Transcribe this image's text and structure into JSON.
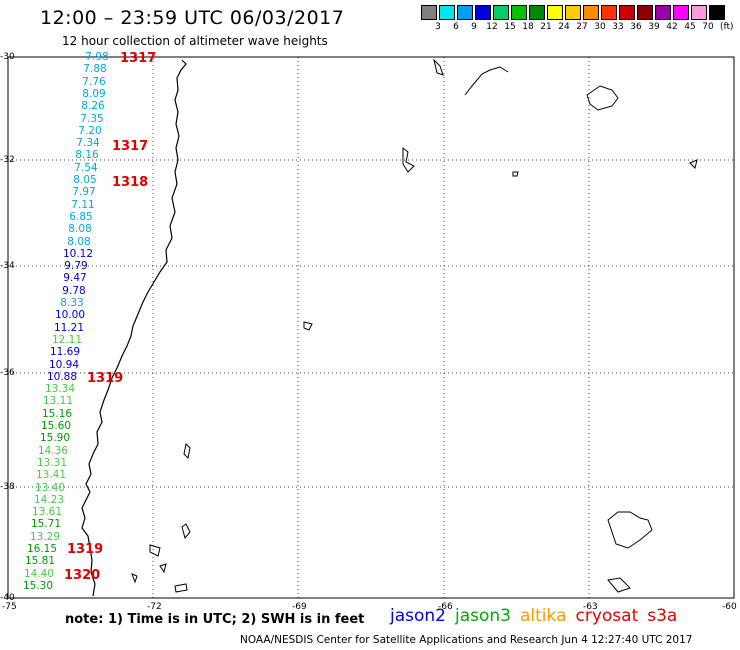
{
  "header": {
    "title": "12:00 – 23:59 UTC 06/03/2017",
    "subtitle": "12 hour collection of altimeter wave heights"
  },
  "legend": {
    "colors": [
      "#808080",
      "#00e5ee",
      "#00a0f0",
      "#0000dd",
      "#00cd66",
      "#00c000",
      "#008800",
      "#ffff00",
      "#ffcc00",
      "#ff8c00",
      "#ff3300",
      "#cc0000",
      "#8b0000",
      "#9900aa",
      "#ff00ff",
      "#ff99dd",
      "#000000"
    ],
    "levels": [
      "3",
      "6",
      "9",
      "12",
      "15",
      "18",
      "21",
      "24",
      "27",
      "30",
      "33",
      "36",
      "39",
      "42",
      "45",
      "70"
    ],
    "unit": "(ft)"
  },
  "axes": {
    "lat_labels": [
      "-30",
      "-32",
      "-34",
      "-36",
      "-38",
      "-40"
    ],
    "lon_labels": [
      "-75",
      "-72",
      "-69",
      "-66",
      "-63",
      "-60"
    ]
  },
  "wave_heights": [
    {
      "value": "7.98",
      "color": "#00a8d8"
    },
    {
      "value": "7.88",
      "color": "#00a8d8"
    },
    {
      "value": "7.76",
      "color": "#00a8d8"
    },
    {
      "value": "8.09",
      "color": "#00a8d8"
    },
    {
      "value": "8.26",
      "color": "#00a8d8"
    },
    {
      "value": "7.35",
      "color": "#00a8d8"
    },
    {
      "value": "7.20",
      "color": "#00a8d8"
    },
    {
      "value": "7.34",
      "color": "#00a8d8"
    },
    {
      "value": "8.16",
      "color": "#00a8d8"
    },
    {
      "value": "7.54",
      "color": "#00a8d8"
    },
    {
      "value": "8.05",
      "color": "#00a8d8"
    },
    {
      "value": "7.97",
      "color": "#00a8d8"
    },
    {
      "value": "7.11",
      "color": "#00a8d8"
    },
    {
      "value": "6.85",
      "color": "#00a8d8"
    },
    {
      "value": "8.08",
      "color": "#00a8d8"
    },
    {
      "value": "8.08",
      "color": "#00a8d8"
    },
    {
      "value": "10.12",
      "color": "#0000cc"
    },
    {
      "value": "9.79",
      "color": "#0000cc"
    },
    {
      "value": "9.47",
      "color": "#0000cc"
    },
    {
      "value": "9.78",
      "color": "#0000cc"
    },
    {
      "value": "8.33",
      "color": "#00a8d8"
    },
    {
      "value": "10.00",
      "color": "#0000cc"
    },
    {
      "value": "11.21",
      "color": "#0000cc"
    },
    {
      "value": "12.11",
      "color": "#44cc44"
    },
    {
      "value": "11.69",
      "color": "#0000cc"
    },
    {
      "value": "10.94",
      "color": "#0000cc"
    },
    {
      "value": "10.88",
      "color": "#0000cc"
    },
    {
      "value": "13.34",
      "color": "#44cc44"
    },
    {
      "value": "13.11",
      "color": "#44cc44"
    },
    {
      "value": "15.16",
      "color": "#009900"
    },
    {
      "value": "15.60",
      "color": "#009900"
    },
    {
      "value": "15.90",
      "color": "#009900"
    },
    {
      "value": "14.36",
      "color": "#44cc44"
    },
    {
      "value": "13.31",
      "color": "#44cc44"
    },
    {
      "value": "13.41",
      "color": "#44cc44"
    },
    {
      "value": "13.40",
      "color": "#44cc44"
    },
    {
      "value": "14.23",
      "color": "#44cc44"
    },
    {
      "value": "13.61",
      "color": "#44cc44"
    },
    {
      "value": "15.71",
      "color": "#009900"
    },
    {
      "value": "13.29",
      "color": "#44cc44"
    },
    {
      "value": "16.15",
      "color": "#009900"
    },
    {
      "value": "15.81",
      "color": "#009900"
    },
    {
      "value": "14.40",
      "color": "#44cc44"
    },
    {
      "value": "15.30",
      "color": "#009900"
    }
  ],
  "pass_labels": [
    "1317",
    "1317",
    "1318",
    "1319",
    "1319",
    "1320"
  ],
  "note": "note:  1) Time is in UTC; 2) SWH is in feet",
  "satellites": [
    {
      "name": "jason2",
      "color": "#0000dd"
    },
    {
      "name": "jason3",
      "color": "#00aa00"
    },
    {
      "name": "altika",
      "color": "#ff9900"
    },
    {
      "name": "cryosat",
      "color": "#ee0000"
    },
    {
      "name": "s3a",
      "color": "#dd0000"
    }
  ],
  "footer": "NOAA/NESDIS Center for Satellite Applications and Research    Jun  4 12:27:40 UTC 2017"
}
